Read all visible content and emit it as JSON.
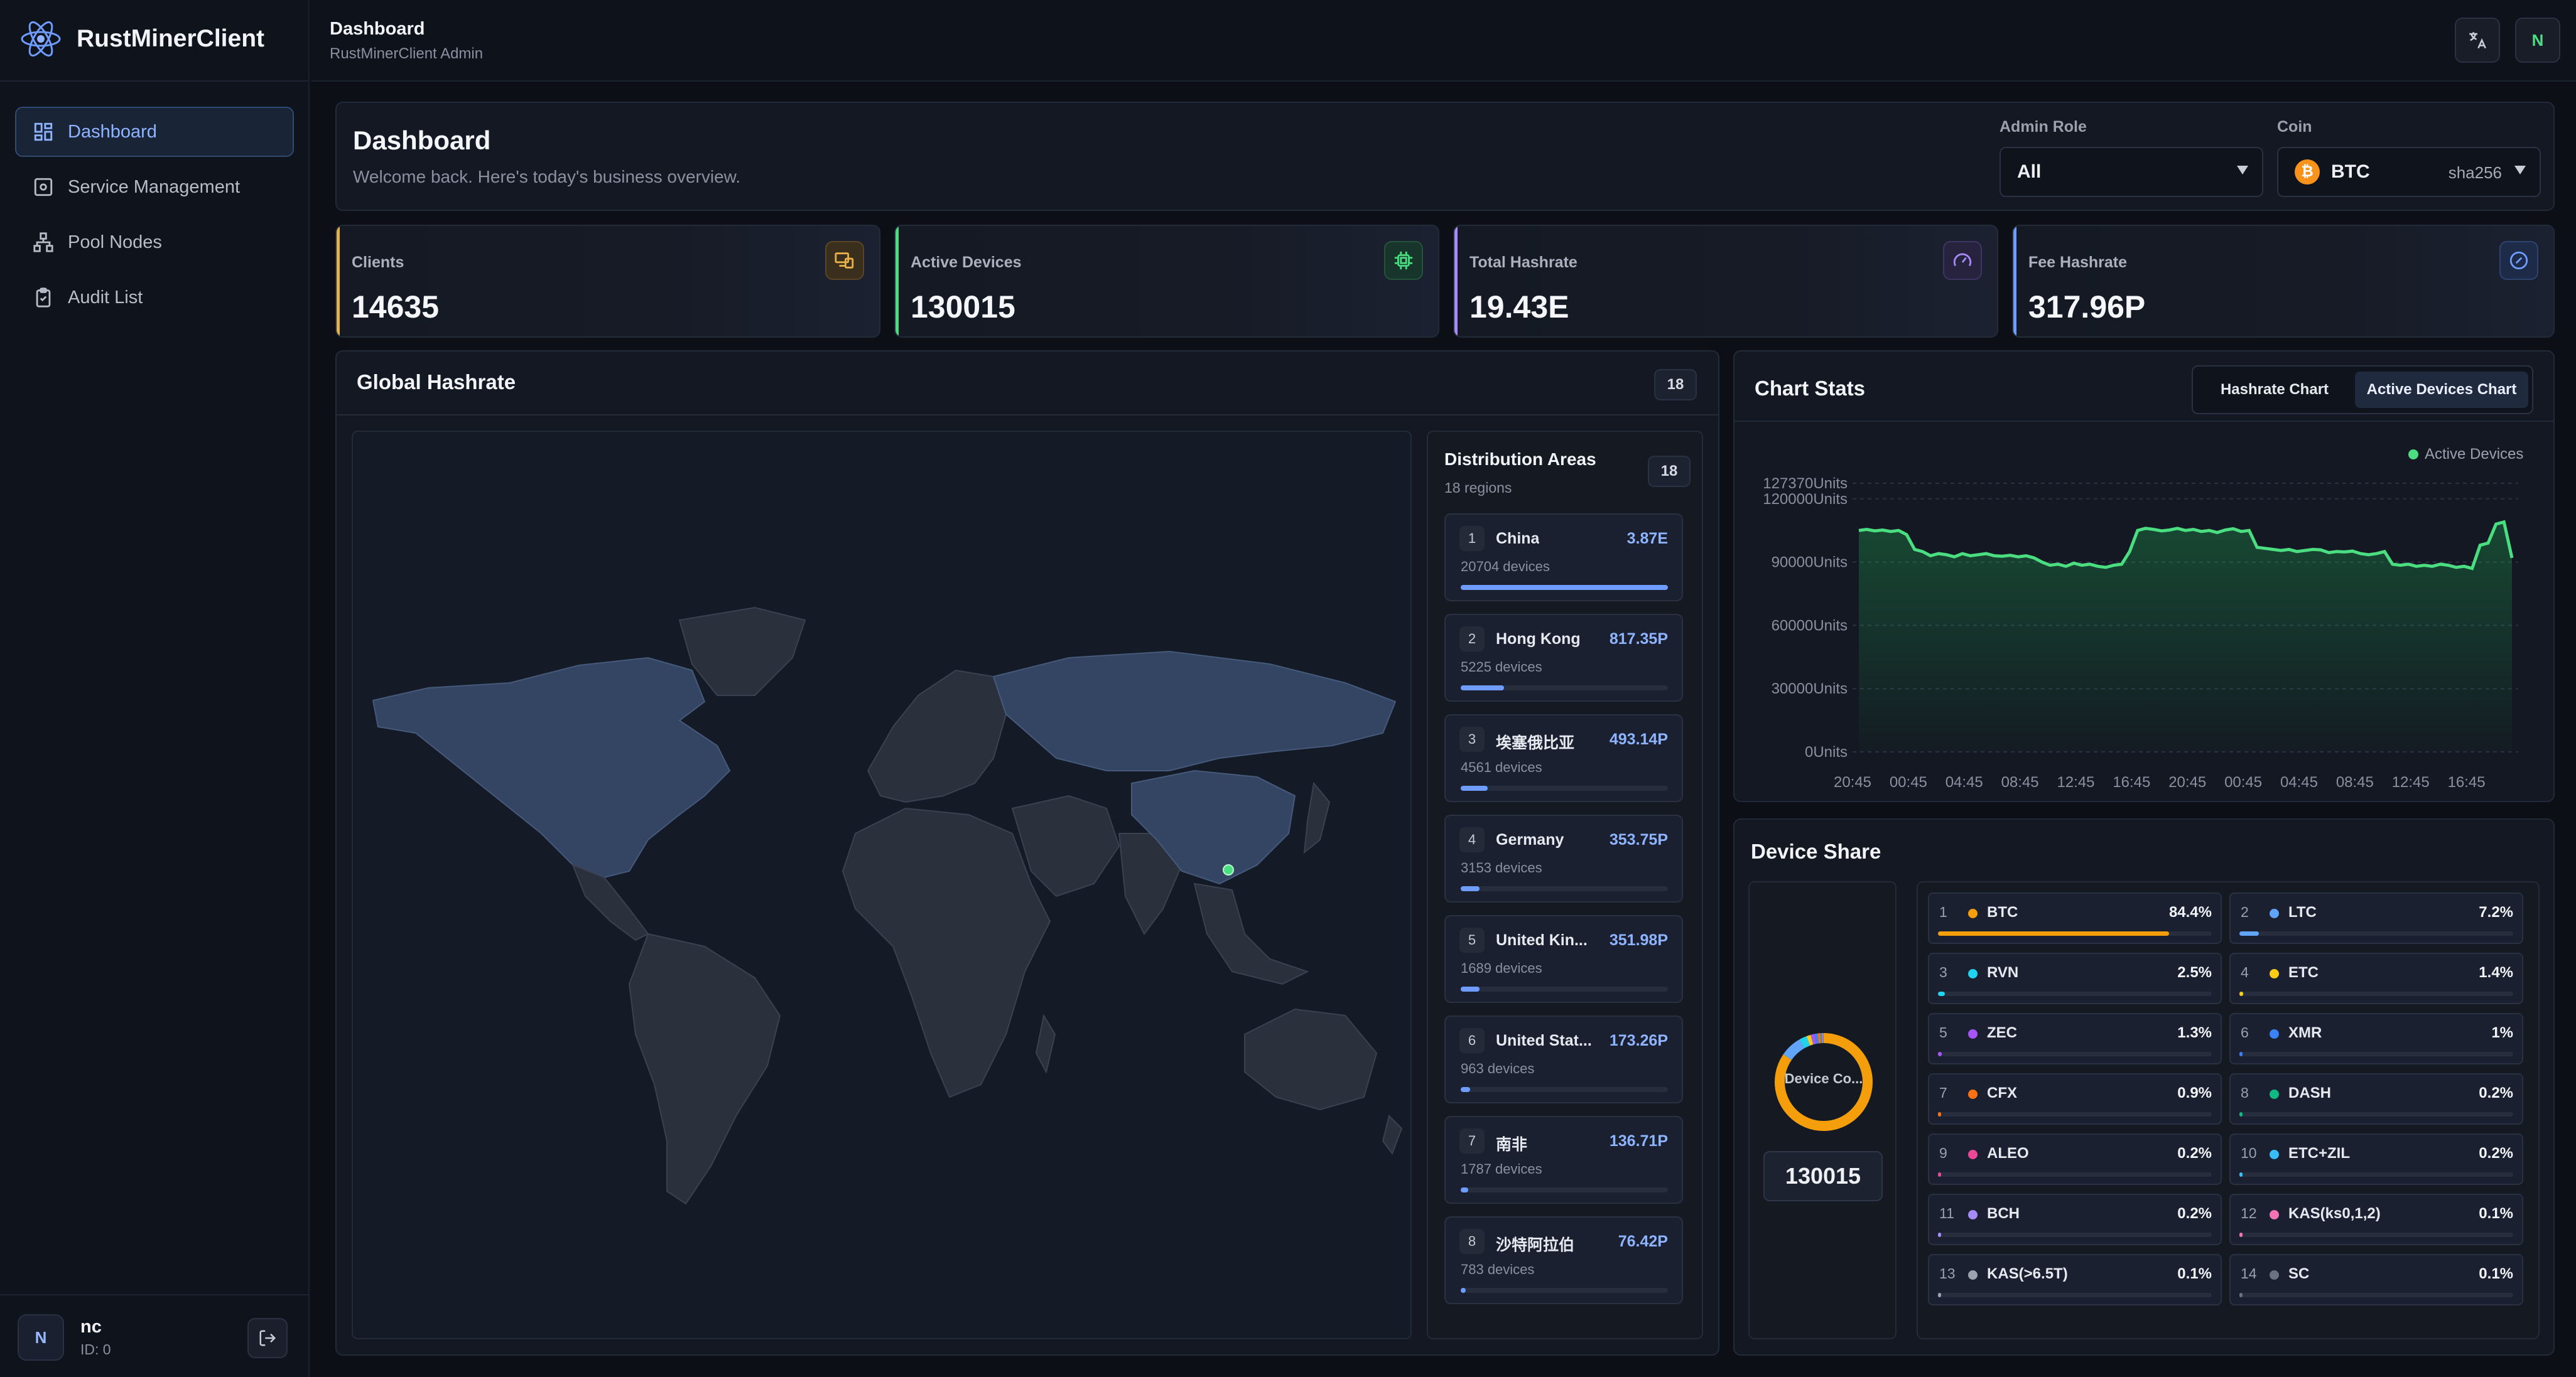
{
  "brand": {
    "name": "RustMinerClient"
  },
  "nav": [
    {
      "label": "Dashboard",
      "icon": "dashboard-icon",
      "active": true
    },
    {
      "label": "Service Management",
      "icon": "service-icon",
      "active": false
    },
    {
      "label": "Pool Nodes",
      "icon": "pool-nodes-icon",
      "active": false
    },
    {
      "label": "Audit List",
      "icon": "clipboard-icon",
      "active": false
    }
  ],
  "user": {
    "avatar": "N",
    "name": "nc",
    "id": "ID: 0"
  },
  "topbar": {
    "title": "Dashboard",
    "subtitle": "RustMinerClient Admin",
    "avatar": "N"
  },
  "header": {
    "title": "Dashboard",
    "subtitle": "Welcome back. Here's today's business overview.",
    "admin_role_label": "Admin Role",
    "admin_role_value": "All",
    "coin_label": "Coin",
    "coin_symbol": "₿",
    "coin_value": "BTC",
    "coin_algo": "sha256"
  },
  "stats": [
    {
      "label": "Clients",
      "value": "14635",
      "color": "#e8b04a"
    },
    {
      "label": "Active Devices",
      "value": "130015",
      "color": "#4ade80"
    },
    {
      "label": "Total Hashrate",
      "value": "19.43E",
      "color": "#a78bfa"
    },
    {
      "label": "Fee Hashrate",
      "value": "317.96P",
      "color": "#6f9cff"
    }
  ],
  "global": {
    "title": "Global Hashrate",
    "count": "18"
  },
  "distribution": {
    "title": "Distribution Areas",
    "subtitle": "18 regions",
    "count": "18",
    "regions": [
      {
        "n": "1",
        "name": "China",
        "value": "3.87E",
        "devices": "20704 devices",
        "frac": 1.0
      },
      {
        "n": "2",
        "name": "Hong Kong",
        "value": "817.35P",
        "devices": "5225 devices",
        "frac": 0.21
      },
      {
        "n": "3",
        "name": "埃塞俄比亚",
        "value": "493.14P",
        "devices": "4561 devices",
        "frac": 0.13
      },
      {
        "n": "4",
        "name": "Germany",
        "value": "353.75P",
        "devices": "3153 devices",
        "frac": 0.09
      },
      {
        "n": "5",
        "name": "United Kin...",
        "value": "351.98P",
        "devices": "1689 devices",
        "frac": 0.09
      },
      {
        "n": "6",
        "name": "United Stat...",
        "value": "173.26P",
        "devices": "963 devices",
        "frac": 0.045
      },
      {
        "n": "7",
        "name": "南非",
        "value": "136.71P",
        "devices": "1787 devices",
        "frac": 0.035
      },
      {
        "n": "8",
        "name": "沙特阿拉伯",
        "value": "76.42P",
        "devices": "783 devices",
        "frac": 0.02
      }
    ]
  },
  "chart_stats": {
    "title": "Chart Stats",
    "tabs": [
      "Hashrate Chart",
      "Active Devices Chart"
    ],
    "active_tab": 1
  },
  "chart_data": {
    "type": "area",
    "series": [
      {
        "name": "Active Devices",
        "color": "#4ade80",
        "values": [
          105000,
          105500,
          104800,
          105200,
          104500,
          105000,
          103000,
          96000,
          95000,
          93000,
          94000,
          93500,
          92500,
          94000,
          93000,
          93500,
          94000,
          93000,
          92800,
          93200,
          92500,
          93000,
          92000,
          90000,
          88500,
          89000,
          88000,
          89500,
          88500,
          89000,
          88000,
          87500,
          88500,
          89000,
          95000,
          105000,
          106000,
          105500,
          104800,
          105200,
          106000,
          105000,
          105500,
          104500,
          105000,
          104000,
          105200,
          105800,
          104500,
          105000,
          97000,
          96500,
          96000,
          95500,
          96000,
          95000,
          95500,
          96000,
          95800,
          94500,
          95000,
          94800,
          95200,
          94000,
          93500,
          94000,
          95000,
          89000,
          88500,
          89000,
          88000,
          88500,
          88000,
          89000,
          88500,
          87500,
          88000,
          87000,
          98000,
          99000,
          108000,
          109000,
          92000
        ]
      }
    ],
    "x_ticks": [
      "20:45",
      "00:45",
      "04:45",
      "08:45",
      "12:45",
      "16:45",
      "20:45",
      "00:45",
      "04:45",
      "08:45",
      "12:45",
      "16:45"
    ],
    "y_ticks": [
      "0Units",
      "30000Units",
      "60000Units",
      "90000Units",
      "120000Units",
      "127370Units"
    ],
    "y_tick_values": [
      0,
      30000,
      60000,
      90000,
      120000,
      127370
    ],
    "ylim": [
      0,
      127370
    ],
    "grid": true,
    "legend": "top-right"
  },
  "device_share": {
    "title": "Device Share",
    "donut_label": "Device Co...",
    "total": "130015",
    "coins": [
      {
        "n": "1",
        "name": "BTC",
        "pct": "84.4%",
        "frac": 0.844,
        "color": "#f59e0b"
      },
      {
        "n": "2",
        "name": "LTC",
        "pct": "7.2%",
        "frac": 0.072,
        "color": "#60a5fa"
      },
      {
        "n": "3",
        "name": "RVN",
        "pct": "2.5%",
        "frac": 0.025,
        "color": "#22d3ee"
      },
      {
        "n": "4",
        "name": "ETC",
        "pct": "1.4%",
        "frac": 0.014,
        "color": "#facc15"
      },
      {
        "n": "5",
        "name": "ZEC",
        "pct": "1.3%",
        "frac": 0.013,
        "color": "#a855f7"
      },
      {
        "n": "6",
        "name": "XMR",
        "pct": "1%",
        "frac": 0.01,
        "color": "#3b82f6"
      },
      {
        "n": "7",
        "name": "CFX",
        "pct": "0.9%",
        "frac": 0.009,
        "color": "#f97316"
      },
      {
        "n": "8",
        "name": "DASH",
        "pct": "0.2%",
        "frac": 0.002,
        "color": "#10b981"
      },
      {
        "n": "9",
        "name": "ALEO",
        "pct": "0.2%",
        "frac": 0.002,
        "color": "#ec4899"
      },
      {
        "n": "10",
        "name": "ETC+ZIL",
        "pct": "0.2%",
        "frac": 0.002,
        "color": "#38bdf8"
      },
      {
        "n": "11",
        "name": "BCH",
        "pct": "0.2%",
        "frac": 0.002,
        "color": "#a78bfa"
      },
      {
        "n": "12",
        "name": "KAS(ks0,1,2)",
        "pct": "0.1%",
        "frac": 0.001,
        "color": "#f472b6"
      },
      {
        "n": "13",
        "name": "KAS(>6.5T)",
        "pct": "0.1%",
        "frac": 0.001,
        "color": "#9ca3af"
      },
      {
        "n": "14",
        "name": "SC",
        "pct": "0.1%",
        "frac": 0.001,
        "color": "#6b7280"
      }
    ]
  }
}
